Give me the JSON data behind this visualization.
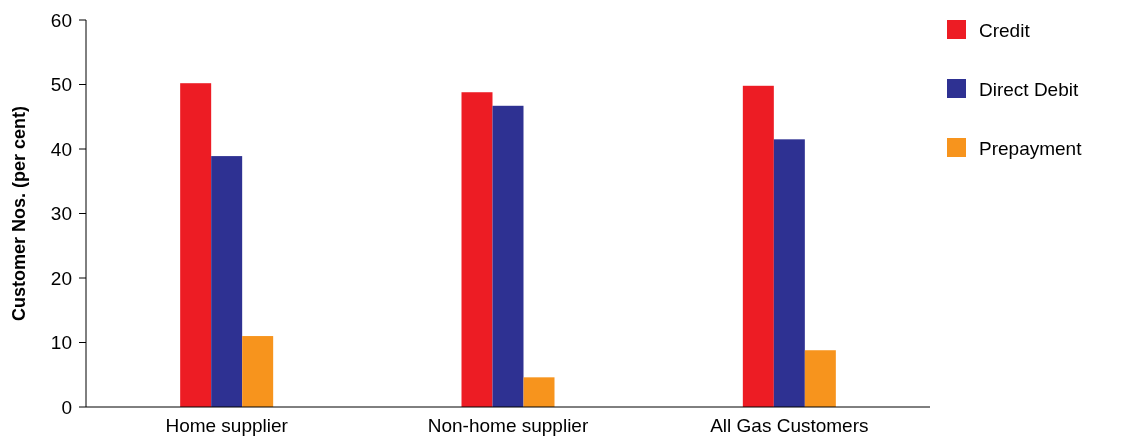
{
  "chart_data": {
    "type": "bar",
    "ylabel": "Customer Nos. (per cent)",
    "categories": [
      "Home supplier",
      "Non-home supplier",
      "All Gas Customers"
    ],
    "series": [
      {
        "name": "Credit",
        "color": "#ed1c24",
        "values": [
          50.2,
          48.8,
          49.8
        ]
      },
      {
        "name": "Direct Debit",
        "color": "#2e3192",
        "values": [
          38.9,
          46.7,
          41.5
        ]
      },
      {
        "name": "Prepayment",
        "color": "#f7941d",
        "values": [
          11.0,
          4.6,
          8.8
        ]
      }
    ],
    "ylim": [
      0,
      60
    ],
    "yticks": [
      0,
      10,
      20,
      30,
      40,
      50,
      60
    ],
    "grid": false,
    "legend": "top right"
  }
}
